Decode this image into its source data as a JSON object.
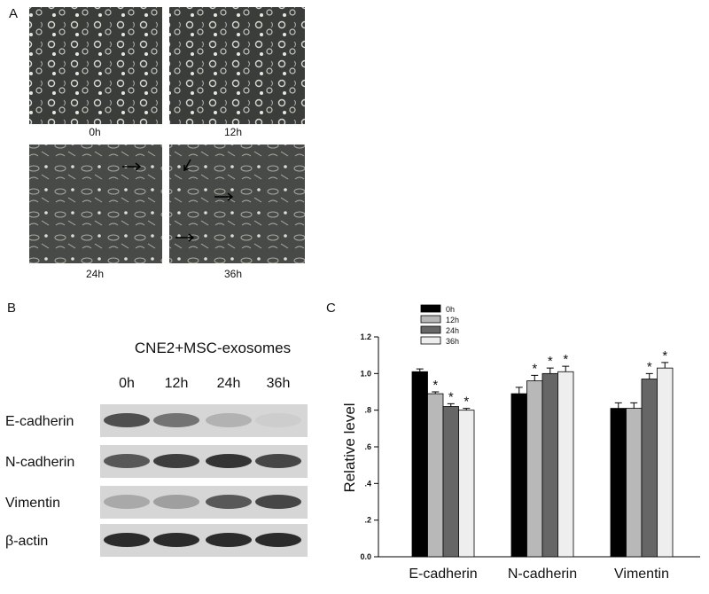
{
  "panel_a": {
    "label": "A",
    "images": [
      {
        "caption": "0h"
      },
      {
        "caption": "12h"
      },
      {
        "caption": "24h"
      },
      {
        "caption": "36h"
      }
    ]
  },
  "panel_b": {
    "label": "B",
    "title": "CNE2+MSC-exosomes",
    "lanes": [
      "0h",
      "12h",
      "24h",
      "36h"
    ],
    "rows": [
      "E-cadherin",
      "N-cadherin",
      "Vimentin",
      "β-actin"
    ]
  },
  "panel_c": {
    "label": "C"
  },
  "chart_data": {
    "type": "bar",
    "y_label": "Relative level",
    "categories": [
      "E-cadherin",
      "N-cadherin",
      "Vimentin"
    ],
    "series": [
      {
        "name": "0h",
        "color": "#000000",
        "values": [
          1.01,
          0.89,
          0.81
        ],
        "errors": [
          0.015,
          0.035,
          0.03
        ],
        "significant": [
          false,
          false,
          false
        ]
      },
      {
        "name": "12h",
        "color": "#b8b8b8",
        "values": [
          0.89,
          0.96,
          0.81
        ],
        "errors": [
          0.01,
          0.03,
          0.03
        ],
        "significant": [
          true,
          true,
          false
        ]
      },
      {
        "name": "24h",
        "color": "#666666",
        "values": [
          0.82,
          1.0,
          0.97
        ],
        "errors": [
          0.015,
          0.03,
          0.03
        ],
        "significant": [
          true,
          true,
          true
        ]
      },
      {
        "name": "36h",
        "color": "#eeeeee",
        "values": [
          0.8,
          1.01,
          1.03
        ],
        "errors": [
          0.01,
          0.03,
          0.03
        ],
        "significant": [
          true,
          true,
          true
        ]
      }
    ],
    "significance_label": "*",
    "ylim": [
      0,
      1.2
    ],
    "yticks": [
      {
        "value": 0,
        "label": "0.0"
      },
      {
        "value": 0.2,
        "label": ".2"
      },
      {
        "value": 0.4,
        "label": ".4"
      },
      {
        "value": 0.6,
        "label": ".6"
      },
      {
        "value": 0.8,
        "label": ".8"
      },
      {
        "value": 1.0,
        "label": "1.0"
      },
      {
        "value": 1.2,
        "label": "1.2"
      }
    ]
  }
}
